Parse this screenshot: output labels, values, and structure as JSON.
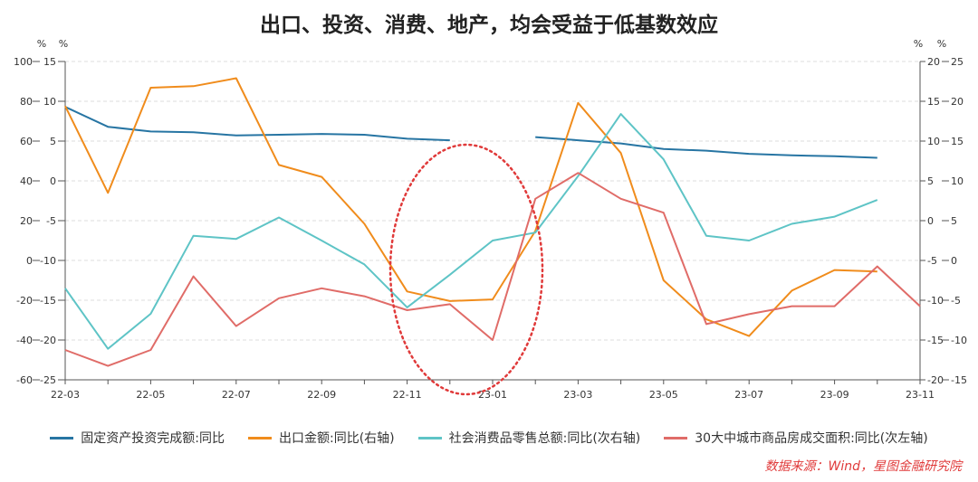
{
  "title": "出口、投资、消费、地产，均会受益于低基数效应",
  "source": "数据来源：Wind，星图金融研究院",
  "chart_data": {
    "type": "line",
    "title": "出口、投资、消费、地产，均会受益于低基数效应",
    "x": [
      "22-03",
      "22-04",
      "22-05",
      "22-06",
      "22-07",
      "22-08",
      "22-09",
      "22-10",
      "22-11",
      "22-12",
      "23-01",
      "23-02",
      "23-03",
      "23-04",
      "23-05",
      "23-06",
      "23-07",
      "23-08",
      "23-09",
      "23-10",
      "23-11"
    ],
    "x_tick_labels": [
      "22-03",
      "22-05",
      "22-07",
      "22-09",
      "22-11",
      "23-01",
      "23-03",
      "23-05",
      "23-07",
      "23-09",
      "23-11"
    ],
    "axes": {
      "outer_left": {
        "unit": "%",
        "ylim": [
          -60,
          100
        ],
        "ticks": [
          100,
          80,
          60,
          40,
          20,
          0,
          -20,
          -40,
          -60
        ]
      },
      "inner_left": {
        "unit": "%",
        "ylim": [
          -25,
          15
        ],
        "ticks": [
          15,
          10,
          5,
          0,
          -5,
          -10,
          -15,
          -20,
          -25
        ]
      },
      "inner_right": {
        "unit": "%",
        "ylim": [
          -20,
          20
        ],
        "ticks": [
          20,
          15,
          10,
          5,
          0,
          -5,
          -10,
          -15,
          -20
        ]
      },
      "outer_right": {
        "unit": "%",
        "ylim": [
          -15,
          25
        ],
        "ticks": [
          25,
          20,
          15,
          10,
          5,
          0,
          -5,
          -10,
          -15
        ]
      }
    },
    "grid": true,
    "legend_position": "bottom",
    "series": [
      {
        "name": "固定资产投资完成额:同比",
        "axis": "inner_left",
        "color": "#2775a3",
        "values": [
          9.3,
          6.8,
          6.2,
          6.1,
          5.7,
          5.8,
          5.9,
          5.8,
          5.3,
          5.1,
          null,
          5.5,
          5.1,
          4.7,
          4.0,
          3.8,
          3.4,
          3.2,
          3.1,
          2.9,
          null
        ]
      },
      {
        "name": "出口金额:同比(右轴)",
        "axis": "inner_right",
        "color": "#f08c1c",
        "values": [
          14.4,
          3.5,
          16.7,
          16.9,
          17.9,
          7.0,
          5.5,
          -0.4,
          -8.9,
          -10.1,
          -9.9,
          -1.3,
          14.8,
          8.5,
          -7.5,
          -12.4,
          -14.5,
          -8.8,
          -6.2,
          -6.4,
          null
        ]
      },
      {
        "name": "社会消费品零售总额:同比(次右轴)",
        "axis": "outer_right",
        "color": "#5ec4c6",
        "values": [
          -3.5,
          -11.1,
          -6.7,
          3.1,
          2.7,
          5.4,
          2.5,
          -0.5,
          -5.9,
          -1.8,
          2.5,
          3.5,
          10.6,
          18.4,
          12.7,
          3.1,
          2.5,
          4.6,
          5.5,
          7.6,
          null
        ]
      },
      {
        "name": "30大中城市商品房成交面积:同比(次左轴)",
        "axis": "outer_left",
        "color": "#e06c68",
        "values": [
          -45,
          -53,
          -45,
          -8,
          -33,
          -19,
          -14,
          -18,
          -25,
          -22,
          -40,
          31,
          44,
          31,
          24,
          -32,
          -27,
          -23,
          -23,
          -3,
          -23
        ]
      }
    ]
  },
  "legend": [
    {
      "label": "固定资产投资完成额:同比",
      "color": "#2775a3"
    },
    {
      "label": "出口金额:同比(右轴)",
      "color": "#f08c1c"
    },
    {
      "label": "社会消费品零售总额:同比(次右轴)",
      "color": "#5ec4c6"
    },
    {
      "label": "30大中城市商品房成交面积:同比(次左轴)",
      "color": "#e06c68"
    }
  ],
  "annotation": {
    "shape": "dotted-ellipse",
    "color": "#e03a3a"
  }
}
